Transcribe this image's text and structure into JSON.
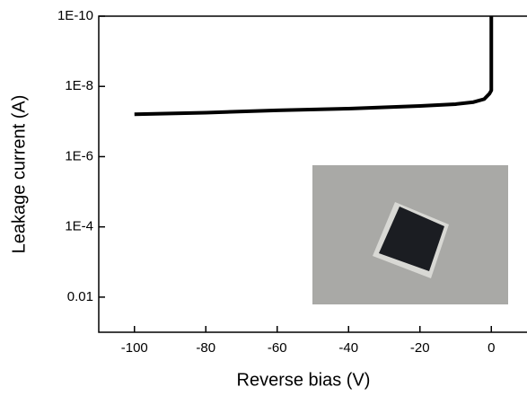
{
  "chart_data": {
    "type": "line",
    "xlabel": "Reverse bias (V)",
    "ylabel": "Leakage current (A)",
    "x": [
      -100,
      -80,
      -60,
      -40,
      -20,
      -10,
      -5,
      -2,
      -0.5,
      0,
      0
    ],
    "series": [
      {
        "color": "#000000",
        "values": [
          6.2e-08,
          5.6e-08,
          4.8e-08,
          4.3e-08,
          3.6e-08,
          3.2e-08,
          2.8e-08,
          2.3e-08,
          1.6e-08,
          1.3e-08,
          1e-10
        ]
      }
    ],
    "xlim": [
      -110,
      10
    ],
    "xticks": [
      -100,
      -80,
      -60,
      -40,
      -20,
      0
    ],
    "ylim": [
      1e-10,
      0.1
    ],
    "yscale": "log",
    "y_inverted": true,
    "yticks": [
      {
        "value": 1e-10,
        "label": "1E-10"
      },
      {
        "value": 1e-08,
        "label": "1E-8"
      },
      {
        "value": 1e-06,
        "label": "1E-6"
      },
      {
        "value": 0.0001,
        "label": "1E-4"
      },
      0.01
    ]
  }
}
